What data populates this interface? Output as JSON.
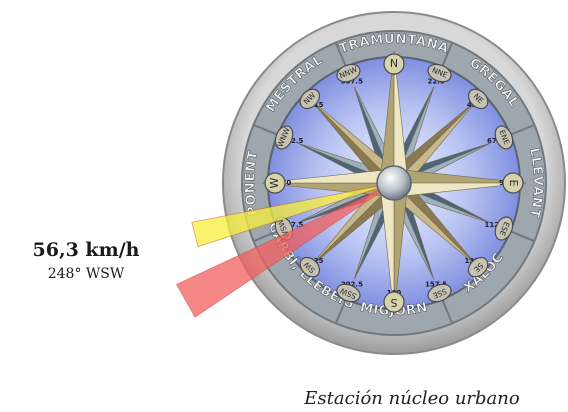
{
  "readout": {
    "speed": "56,3 km/h",
    "direction": "248° WSW"
  },
  "station": "Estación núcleo urbano",
  "wind": {
    "direction_deg": 248,
    "sector_colors": [
      "#f5ef3a",
      "#f25f5f"
    ]
  },
  "winds": [
    {
      "name": "TRAMUNTANA",
      "bearing": 0
    },
    {
      "name": "GREGAL",
      "bearing": 45
    },
    {
      "name": "LLEVANT",
      "bearing": 90
    },
    {
      "name": "XALOC",
      "bearing": 135
    },
    {
      "name": "MIGJORN",
      "bearing": 180
    },
    {
      "name": "GARBÍ, LLEBEIG",
      "bearing": 225
    },
    {
      "name": "PONENT",
      "bearing": 270
    },
    {
      "name": "MESTRAL",
      "bearing": 315
    }
  ],
  "points": [
    {
      "label": "N",
      "bearing": 0
    },
    {
      "label": "NNE",
      "bearing": 22.5
    },
    {
      "label": "NE",
      "bearing": 45
    },
    {
      "label": "ENE",
      "bearing": 67.5
    },
    {
      "label": "E",
      "bearing": 90
    },
    {
      "label": "ESE",
      "bearing": 112.5
    },
    {
      "label": "SE",
      "bearing": 135
    },
    {
      "label": "SSE",
      "bearing": 157.5
    },
    {
      "label": "S",
      "bearing": 180
    },
    {
      "label": "SSW",
      "bearing": 202.5
    },
    {
      "label": "SW",
      "bearing": 225
    },
    {
      "label": "WSW",
      "bearing": 247.5
    },
    {
      "label": "W",
      "bearing": 270
    },
    {
      "label": "WNW",
      "bearing": 292.5
    },
    {
      "label": "NW",
      "bearing": 315
    },
    {
      "label": "NNW",
      "bearing": 337.5
    }
  ],
  "degree_labels": [
    {
      "label": "0",
      "bearing": 0
    },
    {
      "label": "22.5",
      "bearing": 22.5
    },
    {
      "label": "45",
      "bearing": 45
    },
    {
      "label": "67.5",
      "bearing": 67.5
    },
    {
      "label": "90",
      "bearing": 90
    },
    {
      "label": "112.5",
      "bearing": 112.5
    },
    {
      "label": "135",
      "bearing": 135
    },
    {
      "label": "157.5",
      "bearing": 157.5
    },
    {
      "label": "180",
      "bearing": 180
    },
    {
      "label": "202.5",
      "bearing": 202.5
    },
    {
      "label": "225",
      "bearing": 225
    },
    {
      "label": "247.5",
      "bearing": 247.5
    },
    {
      "label": "270",
      "bearing": 270
    },
    {
      "label": "292.5",
      "bearing": 292.5
    },
    {
      "label": "315",
      "bearing": 315
    },
    {
      "label": "337.5",
      "bearing": 337.5
    }
  ]
}
